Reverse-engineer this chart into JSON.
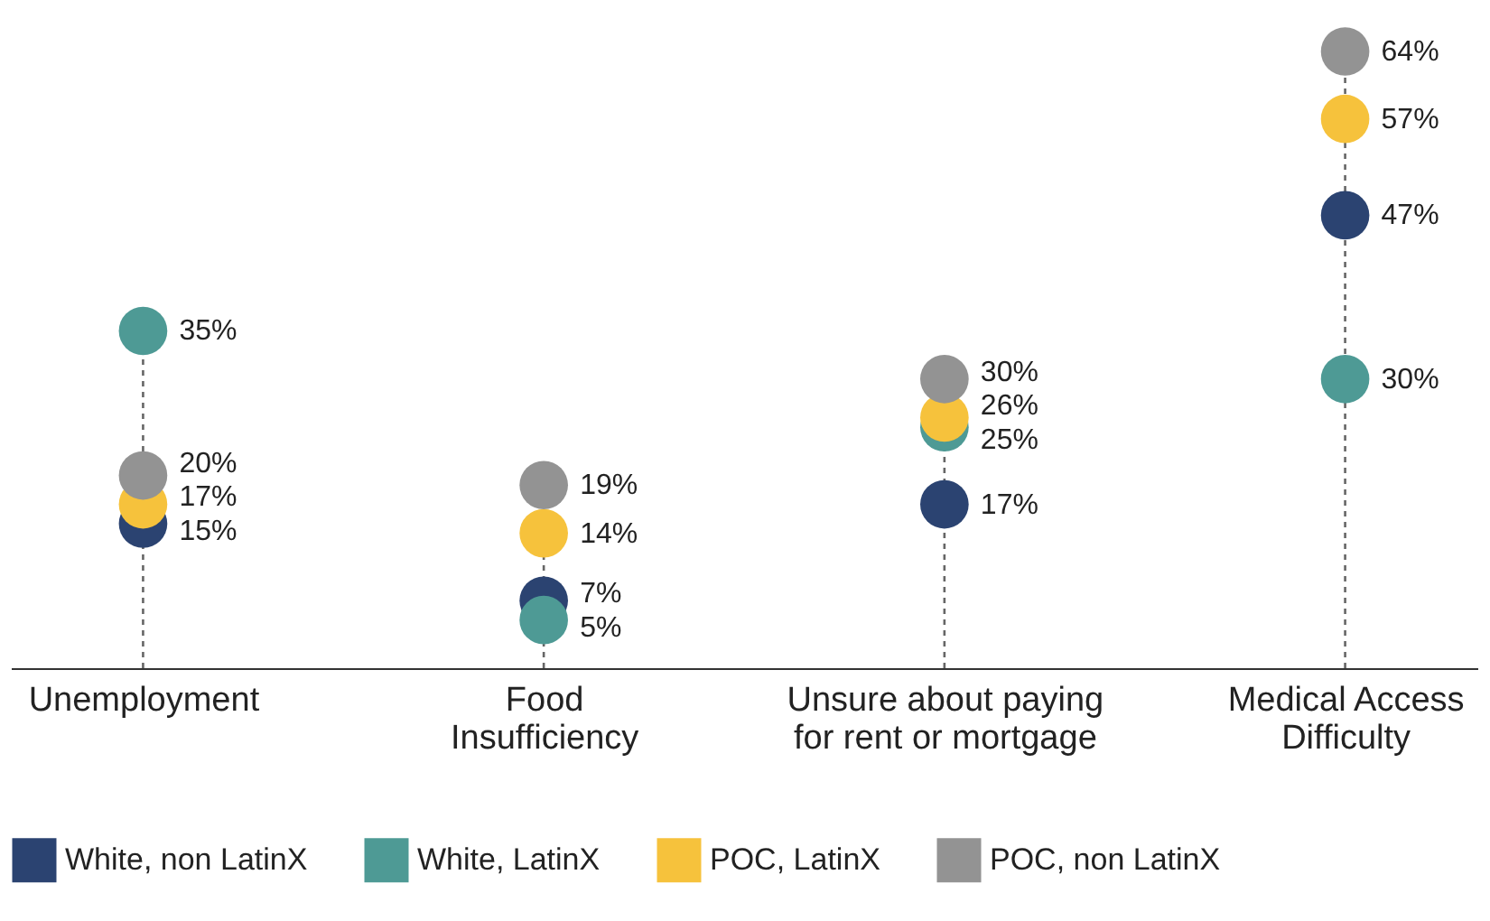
{
  "chart_data": {
    "type": "scatter",
    "categories": [
      "Unemployment",
      "Food\nInsufficiency",
      "Unsure about paying\nfor rent or mortgage",
      "Medical Access\nDifficulty"
    ],
    "series": [
      {
        "name": "White, non LatinX",
        "color": "#2b4371",
        "values": [
          15,
          7,
          17,
          47
        ],
        "value_labels": [
          "15%",
          "7%",
          "17%",
          "47%"
        ]
      },
      {
        "name": "White, LatinX",
        "color": "#4e9a95",
        "values": [
          35,
          5,
          25,
          30
        ],
        "value_labels": [
          "35%",
          "5%",
          "25%",
          "30%"
        ]
      },
      {
        "name": "POC, LatinX",
        "color": "#f6c23c",
        "values": [
          17,
          14,
          26,
          57
        ],
        "value_labels": [
          "17%",
          "14%",
          "26%",
          "57%"
        ]
      },
      {
        "name": "POC, non LatinX",
        "color": "#939393",
        "values": [
          20,
          19,
          30,
          64
        ],
        "value_labels": [
          "20%",
          "19%",
          "30%",
          "64%"
        ]
      }
    ],
    "legend": "bottom",
    "marker": "circle"
  }
}
